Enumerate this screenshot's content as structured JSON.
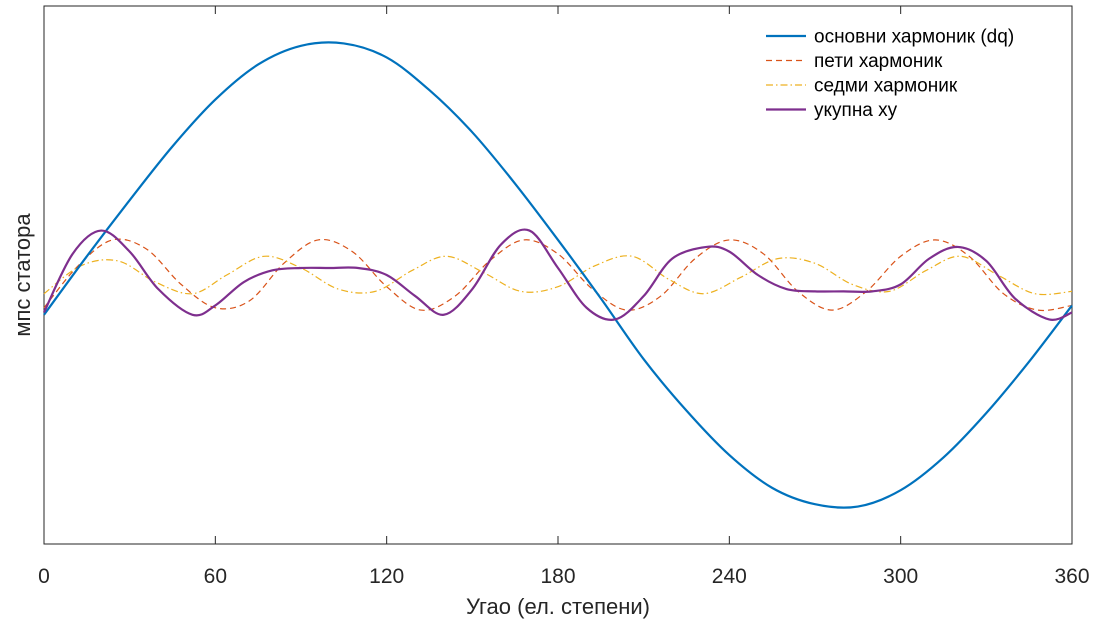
{
  "chart_data": {
    "type": "line",
    "xlabel": "Угао (ел. степени)",
    "ylabel": "мпс статора",
    "xlim": [
      0,
      360
    ],
    "ylim": [
      -1.15,
      1.15
    ],
    "xticks": [
      "0",
      "60",
      "120",
      "180",
      "240",
      "300",
      "360"
    ],
    "yticks": [],
    "grid": false,
    "legend_position": "top-right",
    "series": [
      {
        "name": "основни хармоник (dq)",
        "color": "#0072BD",
        "style": "solid",
        "x": [
          0,
          15,
          30,
          45,
          60,
          75,
          90,
          105,
          120,
          135,
          150,
          165,
          180,
          195,
          210,
          225,
          240,
          255,
          270,
          285,
          300,
          315,
          330,
          345,
          360
        ],
        "y": [
          -0.17,
          0.08,
          0.32,
          0.55,
          0.75,
          0.9,
          0.98,
          0.99,
          0.93,
          0.79,
          0.61,
          0.39,
          0.15,
          -0.1,
          -0.36,
          -0.58,
          -0.77,
          -0.91,
          -0.98,
          -0.99,
          -0.92,
          -0.78,
          -0.59,
          -0.37,
          -0.13
        ]
      },
      {
        "name": "пети хармоник",
        "color": "#D95319",
        "style": "dashed",
        "x": [
          0,
          12,
          24,
          36,
          48,
          60,
          72,
          84,
          96,
          108,
          120,
          132,
          144,
          156,
          168,
          180,
          192,
          204,
          216,
          228,
          240,
          252,
          264,
          276,
          288,
          300,
          312,
          324,
          336,
          348,
          360
        ],
        "y": [
          -0.14,
          0.04,
          0.15,
          0.11,
          -0.04,
          -0.14,
          -0.11,
          0.05,
          0.15,
          0.1,
          -0.05,
          -0.15,
          -0.09,
          0.06,
          0.15,
          0.09,
          -0.06,
          -0.15,
          -0.09,
          0.07,
          0.15,
          0.09,
          -0.07,
          -0.15,
          -0.07,
          0.08,
          0.15,
          0.08,
          -0.08,
          -0.15,
          -0.13
        ]
      },
      {
        "name": "седми хармоник",
        "color": "#EDB120",
        "style": "dashdot",
        "x": [
          0,
          13,
          26,
          39,
          52,
          64,
          77,
          90,
          103,
          116,
          129,
          141,
          154,
          167,
          180,
          193,
          206,
          219,
          231,
          244,
          257,
          270,
          283,
          296,
          309,
          321,
          334,
          347,
          360
        ],
        "y": [
          -0.08,
          0.04,
          0.06,
          -0.03,
          -0.08,
          0.0,
          0.08,
          0.03,
          -0.06,
          -0.07,
          0.02,
          0.08,
          0.01,
          -0.07,
          -0.05,
          0.04,
          0.08,
          -0.02,
          -0.08,
          -0.01,
          0.07,
          0.05,
          -0.04,
          -0.07,
          0.02,
          0.08,
          0.0,
          -0.08,
          -0.07
        ]
      },
      {
        "name": "укупна xy",
        "color": "#7E2F8E",
        "style": "solid",
        "x": [
          0,
          10,
          20,
          30,
          40,
          52,
          60,
          70,
          80,
          90,
          100,
          110,
          120,
          130,
          140,
          150,
          160,
          170,
          180,
          190,
          200,
          210,
          220,
          232,
          240,
          250,
          260,
          270,
          280,
          290,
          300,
          310,
          320,
          330,
          340,
          352,
          360
        ],
        "y": [
          -0.16,
          0.09,
          0.19,
          0.1,
          -0.06,
          -0.17,
          -0.13,
          -0.03,
          0.02,
          0.03,
          0.03,
          0.03,
          0.0,
          -0.09,
          -0.17,
          -0.06,
          0.13,
          0.19,
          0.03,
          -0.14,
          -0.19,
          -0.09,
          0.07,
          0.12,
          0.1,
          0.0,
          -0.06,
          -0.07,
          -0.07,
          -0.07,
          -0.04,
          0.07,
          0.12,
          0.06,
          -0.1,
          -0.19,
          -0.16
        ]
      }
    ]
  }
}
